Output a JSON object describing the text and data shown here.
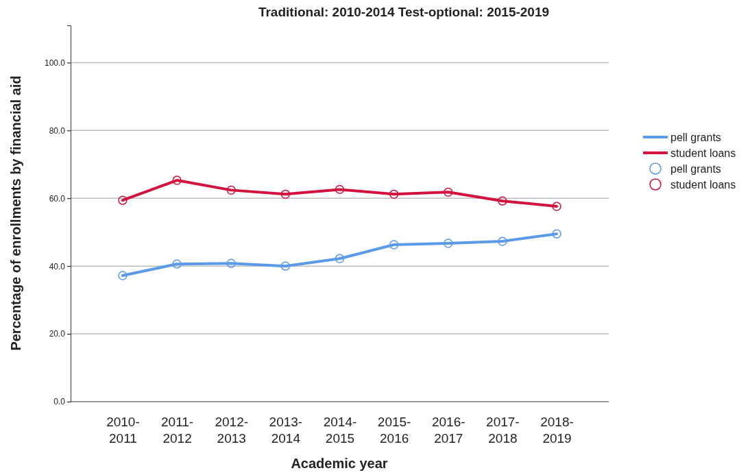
{
  "chart_data": {
    "type": "line",
    "title": "Traditional: 2010-2014   Test-optional: 2015-2019",
    "xlabel": "Academic year",
    "ylabel": "Percentage of enrollments by financial aid",
    "categories": [
      "2010-2011",
      "2011-2012",
      "2012-2013",
      "2013-2014",
      "2014-2015",
      "2015-2016",
      "2016-2017",
      "2017-2018",
      "2018-2019"
    ],
    "series": [
      {
        "name": "pell grants",
        "color": "#5b9ae8",
        "values": [
          37.2,
          40.6,
          40.8,
          40.0,
          42.2,
          46.3,
          46.7,
          47.3,
          49.5
        ]
      },
      {
        "name": "student loans",
        "color": "#d3123f",
        "values": [
          59.4,
          65.3,
          62.4,
          61.2,
          62.6,
          61.2,
          61.8,
          59.2,
          57.6
        ]
      }
    ],
    "ylim": [
      0,
      111
    ],
    "yticks": [
      {
        "value": 0,
        "label": "0.0"
      },
      {
        "value": 20,
        "label": "20.0"
      },
      {
        "value": 40,
        "label": "40.0"
      },
      {
        "value": 60,
        "label": "60.0"
      },
      {
        "value": 80,
        "label": "80.0"
      },
      {
        "value": 100,
        "label": "100.0"
      }
    ],
    "grid": "y",
    "legend": "right",
    "marker": "circle",
    "line_style": "solid"
  }
}
